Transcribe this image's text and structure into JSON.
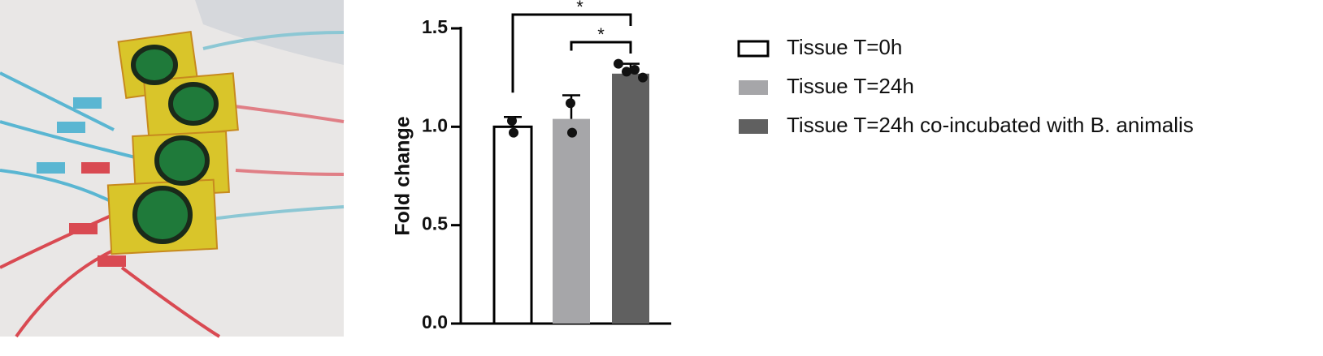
{
  "chart_data": {
    "type": "bar",
    "ylabel": "Fold change",
    "ylim": [
      0,
      1.5
    ],
    "yticks": [
      {
        "value": 0,
        "label": "0.0"
      },
      0.5,
      {
        "value": 1,
        "label": "1.0"
      },
      1.5
    ],
    "series": [
      {
        "name": "Tissue T=0h",
        "color": "#ffffff",
        "value": 1.0,
        "error": 0.05,
        "points": [
          1.03,
          0.97
        ]
      },
      {
        "name": "Tissue T=24h",
        "color": "#a6a6a9",
        "value": 1.04,
        "error": 0.12,
        "points": [
          1.12,
          0.97
        ]
      },
      {
        "name": "Tissue T=24h co-incubated with B. animalis",
        "color": "#606060",
        "value": 1.27,
        "error": 0.05,
        "points": [
          1.32,
          1.28,
          1.29,
          1.25
        ]
      }
    ],
    "annotations": [
      "*",
      "*"
    ]
  }
}
